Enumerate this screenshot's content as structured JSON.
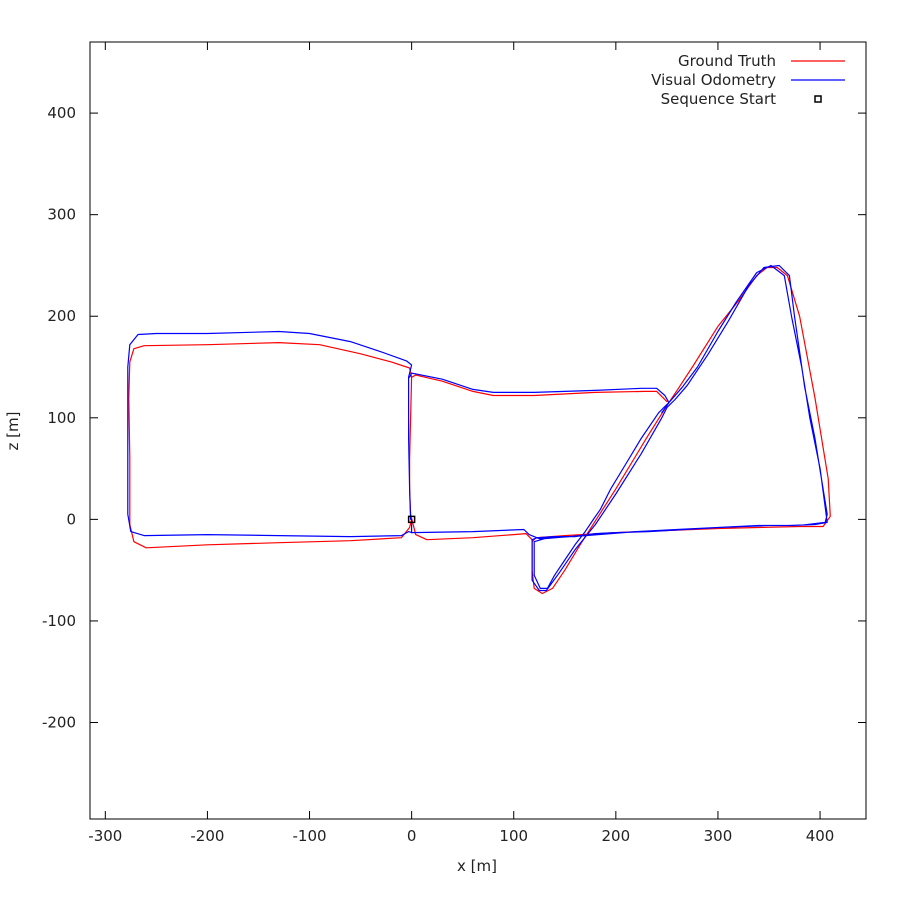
{
  "chart_data": {
    "type": "line",
    "title": "",
    "xlabel": "x [m]",
    "ylabel": "z [m]",
    "xlim": [
      -315,
      445
    ],
    "ylim": [
      -295,
      470
    ],
    "grid": false,
    "legend_position": "top-right",
    "xticks": [
      -300,
      -200,
      -100,
      0,
      100,
      200,
      300,
      400
    ],
    "yticks": [
      -200,
      -100,
      0,
      100,
      200,
      300,
      400
    ],
    "series": [
      {
        "name": "Ground Truth",
        "color": "#ff0000",
        "points": [
          [
            0,
            0
          ],
          [
            -2,
            -8
          ],
          [
            -10,
            -18
          ],
          [
            -60,
            -21
          ],
          [
            -130,
            -23
          ],
          [
            -200,
            -25
          ],
          [
            -260,
            -28
          ],
          [
            -272,
            -22
          ],
          [
            -276,
            -5
          ],
          [
            -276,
            60
          ],
          [
            -277,
            120
          ],
          [
            -276,
            155
          ],
          [
            -272,
            168
          ],
          [
            -262,
            171
          ],
          [
            -200,
            172
          ],
          [
            -130,
            174
          ],
          [
            -90,
            172
          ],
          [
            -50,
            163
          ],
          [
            -20,
            155
          ],
          [
            -2,
            149
          ],
          [
            0,
            140
          ],
          [
            -1,
            100
          ],
          [
            -2,
            60
          ],
          [
            -2,
            30
          ],
          [
            -1,
            5
          ],
          [
            4,
            -15
          ],
          [
            15,
            -20
          ],
          [
            60,
            -18
          ],
          [
            100,
            -15
          ],
          [
            112,
            -14
          ],
          [
            118,
            -20
          ],
          [
            118,
            -50
          ],
          [
            120,
            -68
          ],
          [
            128,
            -73
          ],
          [
            138,
            -68
          ],
          [
            150,
            -50
          ],
          [
            165,
            -25
          ],
          [
            200,
            30
          ],
          [
            230,
            80
          ],
          [
            250,
            112
          ],
          [
            262,
            130
          ],
          [
            275,
            150
          ],
          [
            300,
            190
          ],
          [
            320,
            215
          ],
          [
            338,
            240
          ],
          [
            348,
            248
          ],
          [
            358,
            248
          ],
          [
            368,
            240
          ],
          [
            380,
            200
          ],
          [
            395,
            120
          ],
          [
            408,
            40
          ],
          [
            410,
            3
          ],
          [
            403,
            -7
          ],
          [
            380,
            -7
          ],
          [
            300,
            -9
          ],
          [
            250,
            -11
          ],
          [
            200,
            -13
          ],
          [
            150,
            -16
          ],
          [
            122,
            -18
          ],
          [
            118,
            -22
          ]
        ]
      },
      {
        "name": "Visual Odometry",
        "color": "#0000ff",
        "points": [
          [
            0,
            0
          ],
          [
            0,
            -13
          ],
          [
            60,
            -12
          ],
          [
            110,
            -10
          ],
          [
            115,
            -15
          ],
          [
            125,
            -19
          ],
          [
            170,
            -16
          ],
          [
            220,
            -12
          ],
          [
            260,
            -10
          ],
          [
            300,
            -8
          ],
          [
            350,
            -6
          ],
          [
            380,
            -6
          ],
          [
            405,
            -3
          ],
          [
            407,
            5
          ],
          [
            395,
            80
          ],
          [
            385,
            130
          ],
          [
            375,
            200
          ],
          [
            370,
            240
          ],
          [
            360,
            250
          ],
          [
            345,
            248
          ],
          [
            330,
            230
          ],
          [
            310,
            195
          ],
          [
            290,
            162
          ],
          [
            270,
            132
          ],
          [
            258,
            118
          ],
          [
            250,
            110
          ],
          [
            245,
            100
          ],
          [
            225,
            65
          ],
          [
            200,
            25
          ],
          [
            180,
            -5
          ],
          [
            160,
            -30
          ],
          [
            145,
            -52
          ],
          [
            132,
            -70
          ],
          [
            125,
            -70
          ],
          [
            118,
            -60
          ],
          [
            118,
            -20
          ],
          [
            123,
            -18
          ],
          [
            140,
            -17
          ],
          [
            160,
            -17
          ],
          [
            180,
            -14
          ],
          [
            200,
            -13
          ],
          [
            232,
            -12
          ],
          [
            300,
            -8
          ],
          [
            340,
            -6
          ],
          [
            370,
            -6
          ],
          [
            395,
            -5
          ],
          [
            407,
            -3
          ],
          [
            400,
            50
          ],
          [
            390,
            100
          ],
          [
            382,
            150
          ],
          [
            372,
            200
          ],
          [
            365,
            240
          ],
          [
            352,
            250
          ],
          [
            338,
            243
          ],
          [
            318,
            214
          ],
          [
            300,
            185
          ],
          [
            280,
            150
          ],
          [
            265,
            130
          ],
          [
            252,
            115
          ],
          [
            242,
            105
          ],
          [
            225,
            80
          ],
          [
            210,
            55
          ],
          [
            195,
            30
          ],
          [
            185,
            10
          ],
          [
            178,
            0
          ],
          [
            170,
            -12
          ],
          [
            160,
            -25
          ],
          [
            150,
            -40
          ],
          [
            140,
            -55
          ],
          [
            133,
            -68
          ],
          [
            126,
            -68
          ],
          [
            120,
            -55
          ],
          [
            120,
            -22
          ],
          [
            130,
            -19
          ],
          [
            200,
            -13
          ]
        ]
      },
      {
        "name": "Visual Odometry",
        "color": "#0000ff",
        "points": [
          [
            0,
            -13
          ],
          [
            -3,
            -12
          ],
          [
            -10,
            -16
          ],
          [
            -60,
            -17
          ],
          [
            -130,
            -16
          ],
          [
            -200,
            -15
          ],
          [
            -262,
            -16
          ],
          [
            -275,
            -12
          ],
          [
            -278,
            5
          ],
          [
            -278,
            80
          ],
          [
            -278,
            150
          ],
          [
            -276,
            172
          ],
          [
            -268,
            182
          ],
          [
            -250,
            183
          ],
          [
            -200,
            183
          ],
          [
            -130,
            185
          ],
          [
            -100,
            183
          ],
          [
            -60,
            175
          ],
          [
            -30,
            165
          ],
          [
            -5,
            156
          ],
          [
            0,
            152
          ],
          [
            -3,
            140
          ],
          [
            -3,
            80
          ],
          [
            -2,
            30
          ],
          [
            -1,
            0
          ]
        ]
      },
      {
        "name": "Visual Odometry",
        "color": "#0000ff",
        "points": [
          [
            -2,
            140
          ],
          [
            0,
            144
          ],
          [
            30,
            138
          ],
          [
            60,
            128
          ],
          [
            80,
            125
          ],
          [
            120,
            125
          ],
          [
            180,
            127
          ],
          [
            225,
            129
          ],
          [
            240,
            129
          ],
          [
            248,
            122
          ],
          [
            252,
            115
          ],
          [
            245,
            105
          ]
        ]
      },
      {
        "name": "Ground Truth",
        "color": "#ff0000",
        "points": [
          [
            0,
            140
          ],
          [
            4,
            142
          ],
          [
            30,
            136
          ],
          [
            60,
            126
          ],
          [
            80,
            122
          ],
          [
            120,
            122
          ],
          [
            180,
            125
          ],
          [
            228,
            126
          ],
          [
            240,
            126
          ],
          [
            250,
            116
          ]
        ]
      }
    ],
    "legend": [
      {
        "label": "Ground Truth",
        "kind": "line",
        "color": "#ff0000"
      },
      {
        "label": "Visual Odometry",
        "kind": "line",
        "color": "#0000ff"
      },
      {
        "label": "Sequence Start",
        "kind": "marker",
        "color": "#000000"
      }
    ],
    "sequence_start": {
      "label": "Sequence Start",
      "x": 0,
      "y": 0
    }
  }
}
